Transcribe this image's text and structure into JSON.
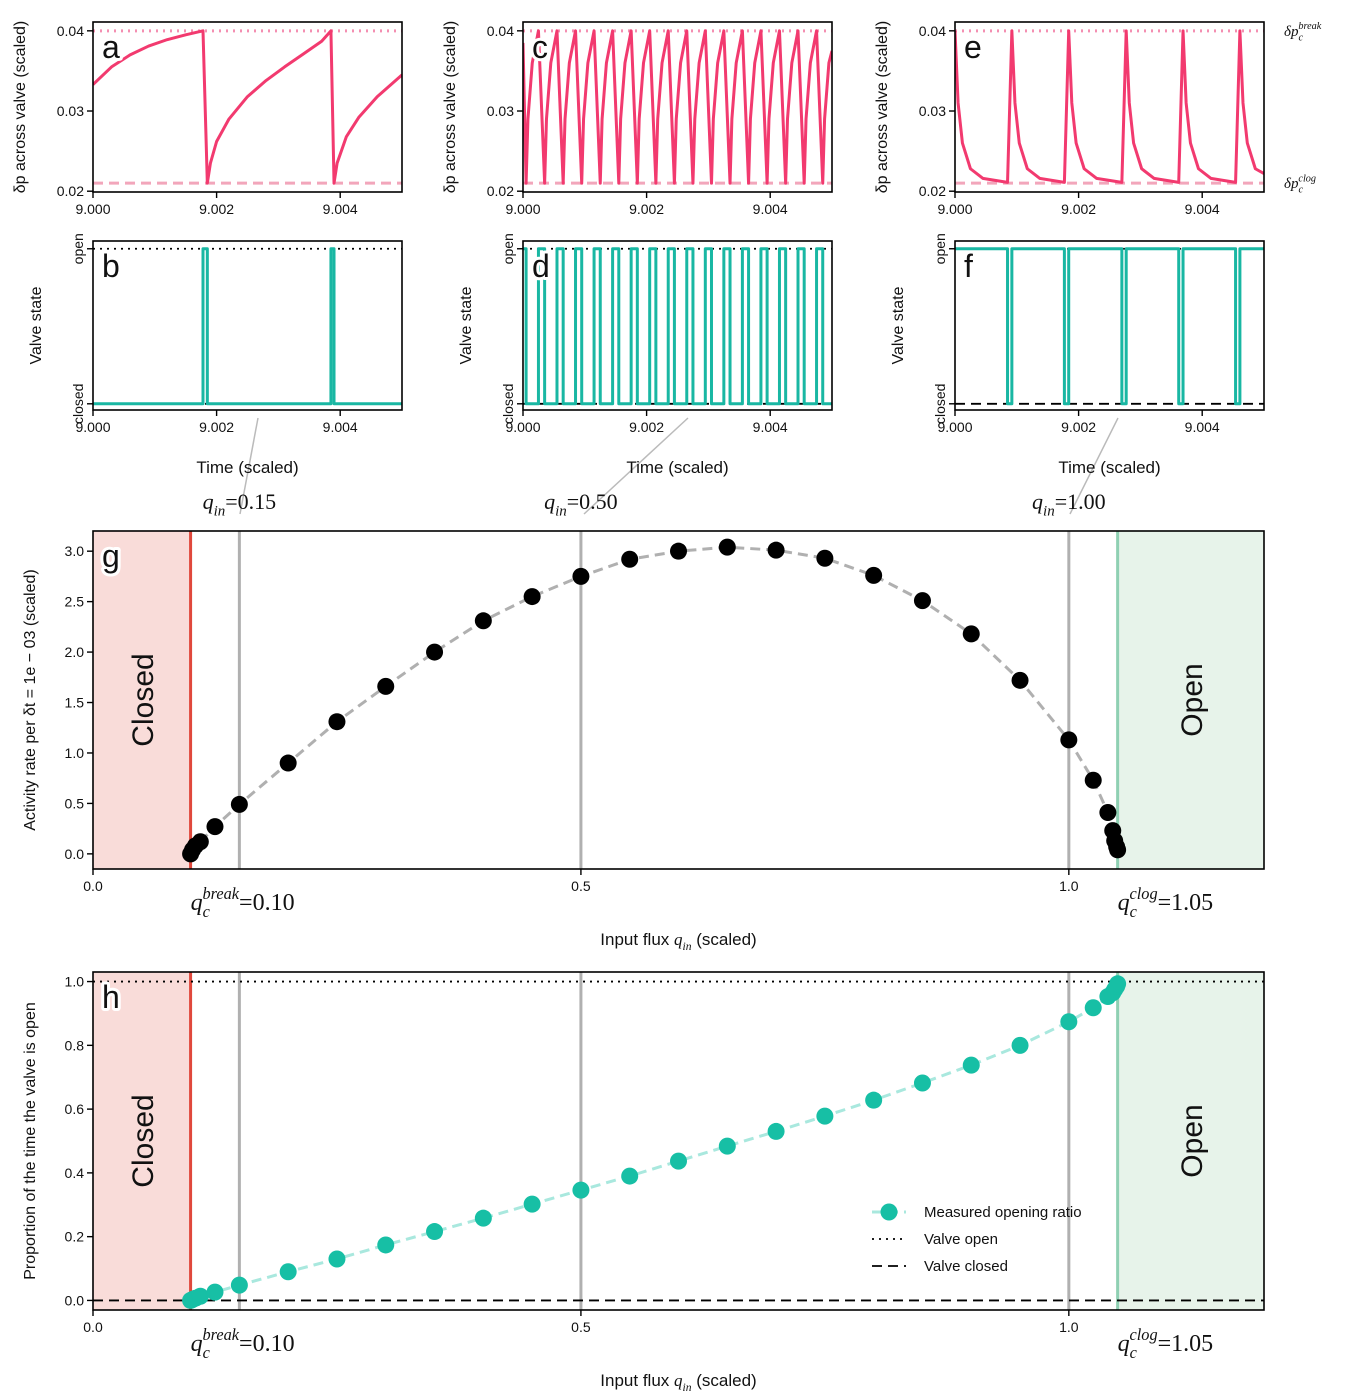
{
  "chart_data": [
    {
      "type": "line",
      "label": "a",
      "ylabel": "δp across valve (scaled)",
      "x": [
        9.0,
        9.0003,
        9.0006,
        9.0009,
        9.0012,
        9.0015,
        9.00178,
        9.00185,
        9.0019,
        9.002,
        9.0022,
        9.0025,
        9.0028,
        9.0031,
        9.0034,
        9.0037,
        9.00385,
        9.0039,
        9.00395,
        9.0041,
        9.0043,
        9.0046,
        9.005
      ],
      "series": [
        {
          "color": "#f23a6f",
          "values": [
            0.0333,
            0.0355,
            0.037,
            0.0381,
            0.0389,
            0.0395,
            0.04,
            0.021,
            0.0235,
            0.0262,
            0.029,
            0.0318,
            0.0338,
            0.0355,
            0.0371,
            0.0387,
            0.04,
            0.021,
            0.0235,
            0.0268,
            0.0292,
            0.0318,
            0.0345
          ]
        }
      ],
      "xlim": [
        9.0,
        9.005
      ],
      "xticks": [
        {
          "value": 9.0,
          "label": "9.000"
        },
        9.002,
        9.004
      ],
      "ylim": [
        0.0199,
        0.0411
      ],
      "yticks": [
        0.02,
        0.03,
        0.04
      ],
      "reference_lines": [
        {
          "value": 0.04,
          "style": "dotted",
          "color": "#f48fb1"
        },
        {
          "value": 0.021,
          "style": "dashed",
          "color": "#f2a6bb"
        }
      ]
    },
    {
      "type": "line",
      "label": "b",
      "ylabel": "Valve state",
      "xlabel": "Time (scaled)",
      "x": [
        9.0,
        9.00178,
        9.00178,
        9.00185,
        9.00185,
        9.00385,
        9.00385,
        9.0039,
        9.0039,
        9.005
      ],
      "series": [
        {
          "color": "#19b7a3",
          "values": [
            0,
            0,
            1,
            1,
            0,
            0,
            1,
            1,
            0,
            0
          ]
        }
      ],
      "xlim": [
        9.0,
        9.005
      ],
      "xticks": [
        {
          "value": 9.0,
          "label": "9.000"
        },
        9.002,
        9.004
      ],
      "ylim": [
        -0.04,
        1.05
      ],
      "yticks": [
        {
          "value": 0,
          "label": "closed"
        },
        {
          "value": 1,
          "label": "open"
        }
      ],
      "reference_lines": [
        {
          "value": 1,
          "style": "dotted",
          "color": "#000000"
        },
        {
          "value": 0,
          "style": "dashed",
          "color": "#000000"
        }
      ]
    },
    {
      "type": "line",
      "label": "c",
      "ylabel": "δp across valve (scaled)",
      "x": [
        9.0,
        9.00005,
        9.00008,
        9.00015,
        9.00025,
        9.00035,
        9.00038,
        9.00045,
        9.00055,
        9.00065,
        9.00068,
        9.00075,
        9.00085,
        9.00095,
        9.00098,
        9.00105,
        9.00115,
        9.00125,
        9.00128,
        9.00135,
        9.00145,
        9.00155,
        9.00158,
        9.00165,
        9.00175,
        9.00185,
        9.00188,
        9.00195,
        9.00205,
        9.00215,
        9.00218,
        9.00225,
        9.00235,
        9.00245,
        9.00248,
        9.00255,
        9.00265,
        9.00275,
        9.00278,
        9.00285,
        9.00295,
        9.00305,
        9.00308,
        9.00315,
        9.00325,
        9.00335,
        9.00338,
        9.00345,
        9.00355,
        9.00365,
        9.00368,
        9.00375,
        9.00385,
        9.00395,
        9.00398,
        9.00405,
        9.00415,
        9.00425,
        9.00428,
        9.00435,
        9.00445,
        9.00455,
        9.00458,
        9.00465,
        9.00475,
        9.00485,
        9.00488,
        9.00495,
        9.005
      ],
      "series": [
        {
          "color": "#f23a6f",
          "values": [
            0.0385,
            0.021,
            0.029,
            0.036,
            0.04,
            0.021,
            0.029,
            0.036,
            0.04,
            0.021,
            0.029,
            0.036,
            0.04,
            0.021,
            0.029,
            0.036,
            0.04,
            0.021,
            0.029,
            0.036,
            0.04,
            0.021,
            0.029,
            0.036,
            0.04,
            0.021,
            0.029,
            0.036,
            0.04,
            0.021,
            0.029,
            0.036,
            0.04,
            0.021,
            0.029,
            0.036,
            0.04,
            0.021,
            0.029,
            0.036,
            0.04,
            0.021,
            0.029,
            0.036,
            0.04,
            0.021,
            0.029,
            0.036,
            0.04,
            0.021,
            0.029,
            0.036,
            0.04,
            0.021,
            0.029,
            0.036,
            0.04,
            0.021,
            0.029,
            0.036,
            0.04,
            0.021,
            0.029,
            0.036,
            0.04,
            0.021,
            0.029,
            0.036,
            0.0375
          ]
        }
      ],
      "xlim": [
        9.0,
        9.005
      ],
      "xticks": [
        {
          "value": 9.0,
          "label": "9.000"
        },
        9.002,
        9.004
      ],
      "ylim": [
        0.0199,
        0.0411
      ],
      "yticks": [
        0.02,
        0.03,
        0.04
      ],
      "reference_lines": [
        {
          "value": 0.04,
          "style": "dotted",
          "color": "#f48fb1"
        },
        {
          "value": 0.021,
          "style": "dashed",
          "color": "#f2a6bb"
        }
      ]
    },
    {
      "type": "line",
      "label": "d",
      "ylabel": "Valve state",
      "xlabel": "Time (scaled)",
      "x": [
        9.0,
        9.00005,
        9.00005,
        9.00025,
        9.00025,
        9.00035,
        9.00035,
        9.00055,
        9.00055,
        9.00065,
        9.00065,
        9.00085,
        9.00085,
        9.00095,
        9.00095,
        9.00115,
        9.00115,
        9.00125,
        9.00125,
        9.00145,
        9.00145,
        9.00155,
        9.00155,
        9.00175,
        9.00175,
        9.00185,
        9.00185,
        9.00205,
        9.00205,
        9.00215,
        9.00215,
        9.00235,
        9.00235,
        9.00245,
        9.00245,
        9.00265,
        9.00265,
        9.00275,
        9.00275,
        9.00295,
        9.00295,
        9.00305,
        9.00305,
        9.00325,
        9.00325,
        9.00335,
        9.00335,
        9.00355,
        9.00355,
        9.00365,
        9.00365,
        9.00385,
        9.00385,
        9.00395,
        9.00395,
        9.00415,
        9.00415,
        9.00425,
        9.00425,
        9.00445,
        9.00445,
        9.00455,
        9.00455,
        9.00475,
        9.00475,
        9.00485,
        9.00485,
        9.005
      ],
      "series": [
        {
          "color": "#19b7a3",
          "values": [
            1,
            1,
            0,
            0,
            1,
            1,
            0,
            0,
            1,
            1,
            0,
            0,
            1,
            1,
            0,
            0,
            1,
            1,
            0,
            0,
            1,
            1,
            0,
            0,
            1,
            1,
            0,
            0,
            1,
            1,
            0,
            0,
            1,
            1,
            0,
            0,
            1,
            1,
            0,
            0,
            1,
            1,
            0,
            0,
            1,
            1,
            0,
            0,
            1,
            1,
            0,
            0,
            1,
            1,
            0,
            0,
            1,
            1,
            0,
            0,
            1,
            1,
            0,
            0,
            1,
            1,
            0,
            0
          ]
        }
      ],
      "xlim": [
        9.0,
        9.005
      ],
      "xticks": [
        {
          "value": 9.0,
          "label": "9.000"
        },
        9.002,
        9.004
      ],
      "ylim": [
        -0.04,
        1.05
      ],
      "yticks": [
        {
          "value": 0,
          "label": "closed"
        },
        {
          "value": 1,
          "label": "open"
        }
      ],
      "reference_lines": [
        {
          "value": 1,
          "style": "dotted",
          "color": "#000000"
        },
        {
          "value": 0,
          "style": "dashed",
          "color": "#000000"
        }
      ]
    },
    {
      "type": "line",
      "label": "e",
      "ylabel": "δp across valve (scaled)",
      "x": [
        9.0,
        9.00005,
        9.00012,
        9.00025,
        9.00045,
        9.00085,
        9.00092,
        9.00097,
        9.00104,
        9.00117,
        9.00137,
        9.00177,
        9.00184,
        9.00189,
        9.00196,
        9.00209,
        9.00229,
        9.0027,
        9.00277,
        9.00282,
        9.00289,
        9.00302,
        9.00322,
        9.00362,
        9.00369,
        9.00374,
        9.00381,
        9.00394,
        9.00414,
        9.00454,
        9.00461,
        9.00466,
        9.00473,
        9.00486,
        9.005
      ],
      "series": [
        {
          "color": "#f23a6f",
          "values": [
            0.04,
            0.031,
            0.026,
            0.0228,
            0.0216,
            0.0211,
            0.04,
            0.031,
            0.026,
            0.0228,
            0.0216,
            0.0211,
            0.04,
            0.031,
            0.026,
            0.0228,
            0.0216,
            0.0211,
            0.04,
            0.031,
            0.026,
            0.0228,
            0.0216,
            0.0211,
            0.04,
            0.031,
            0.026,
            0.0228,
            0.0216,
            0.0211,
            0.04,
            0.031,
            0.026,
            0.0228,
            0.0222
          ]
        }
      ],
      "xlim": [
        9.0,
        9.005
      ],
      "xticks": [
        {
          "value": 9.0,
          "label": "9.000"
        },
        9.002,
        9.004
      ],
      "ylim": [
        0.0199,
        0.0411
      ],
      "yticks": [
        0.02,
        0.03,
        0.04
      ],
      "reference_lines": [
        {
          "value": 0.04,
          "style": "dotted",
          "color": "#f48fb1",
          "label": {
            "var": "δp",
            "sub": "c",
            "sup": "break"
          }
        },
        {
          "value": 0.021,
          "style": "dashed",
          "color": "#f2a6bb",
          "label": {
            "var": "δp",
            "sub": "c",
            "sup": "clog"
          }
        }
      ]
    },
    {
      "type": "line",
      "label": "f",
      "ylabel": "Valve state",
      "xlabel": "Time (scaled)",
      "x": [
        9.0,
        9.00085,
        9.00085,
        9.00092,
        9.00092,
        9.00177,
        9.00177,
        9.00184,
        9.00184,
        9.0027,
        9.0027,
        9.00277,
        9.00277,
        9.00362,
        9.00362,
        9.00369,
        9.00369,
        9.00454,
        9.00454,
        9.00461,
        9.00461,
        9.005
      ],
      "series": [
        {
          "color": "#19b7a3",
          "values": [
            1,
            1,
            0,
            0,
            1,
            1,
            0,
            0,
            1,
            1,
            0,
            0,
            1,
            1,
            0,
            0,
            1,
            1,
            0,
            0,
            1,
            1
          ]
        }
      ],
      "xlim": [
        9.0,
        9.005
      ],
      "xticks": [
        {
          "value": 9.0,
          "label": "9.000"
        },
        9.002,
        9.004
      ],
      "ylim": [
        -0.04,
        1.05
      ],
      "yticks": [
        {
          "value": 0,
          "label": "closed"
        },
        {
          "value": 1,
          "label": "open"
        }
      ],
      "reference_lines": [
        {
          "value": 1,
          "style": "dotted",
          "color": "#000000"
        },
        {
          "value": 0,
          "style": "dashed",
          "color": "#000000"
        }
      ]
    },
    {
      "type": "scatter",
      "label": "g",
      "ylabel": "Activity rate per δt = 1e − 03 (scaled)",
      "xlabel": {
        "text": "Input flux ",
        "var": "q",
        "sub": "in",
        "end": " (scaled)"
      },
      "x": [
        0.1,
        0.102,
        0.105,
        0.11,
        0.125,
        0.15,
        0.2,
        0.25,
        0.3,
        0.35,
        0.4,
        0.45,
        0.5,
        0.55,
        0.6,
        0.65,
        0.7,
        0.75,
        0.8,
        0.85,
        0.9,
        0.95,
        1.0,
        1.025,
        1.04,
        1.045,
        1.047,
        1.049,
        1.05
      ],
      "series": [
        {
          "color": "#000000",
          "line_color": "#b0b0b0",
          "values": [
            0,
            0.04,
            0.08,
            0.12,
            0.27,
            0.49,
            0.9,
            1.31,
            1.66,
            2.0,
            2.31,
            2.55,
            2.75,
            2.92,
            3.0,
            3.04,
            3.01,
            2.93,
            2.76,
            2.51,
            2.18,
            1.72,
            1.13,
            0.73,
            0.41,
            0.23,
            0.13,
            0.07,
            0.04
          ]
        }
      ],
      "xlim": [
        0,
        1.2
      ],
      "xticks": [
        {
          "value": 0,
          "label": "0.0"
        },
        0.5,
        {
          "value": 1,
          "label": "1.0"
        }
      ],
      "ylim": [
        -0.15,
        3.2
      ],
      "yticks": [
        {
          "value": 0,
          "label": "0.0"
        },
        0.5,
        {
          "value": 1,
          "label": "1.0"
        },
        1.5,
        {
          "value": 2,
          "label": "2.0"
        },
        2.5,
        {
          "value": 3,
          "label": "3.0"
        }
      ],
      "vlines": [
        {
          "value": 0.15,
          "label": {
            "var": "q",
            "sub": "in",
            "suffix": "=0.15"
          }
        },
        {
          "value": 0.5,
          "label": {
            "var": "q",
            "sub": "in",
            "suffix": "=0.50"
          }
        },
        {
          "value": 1.0,
          "label": {
            "var": "q",
            "sub": "in",
            "suffix": "=1.00"
          }
        }
      ],
      "thresholds": [
        {
          "value": 0.1,
          "color": "#e0483c",
          "label": {
            "var": "q",
            "sub": "c",
            "sup": "break",
            "suffix": "=0.10"
          },
          "region": {
            "label": "Closed",
            "color": "#f9dcd9"
          }
        },
        {
          "value": 1.05,
          "color": "#8fd0b3",
          "label": {
            "var": "q",
            "sub": "c",
            "sup": "clog",
            "suffix": "=1.05"
          },
          "region": {
            "label": "Open",
            "color": "#e7f3ea"
          }
        }
      ]
    },
    {
      "type": "scatter",
      "label": "h",
      "ylabel": "Proportion of the time the valve is open",
      "xlabel": {
        "text": "Input flux ",
        "var": "q",
        "sub": "in",
        "end": " (scaled)"
      },
      "x": [
        0.1,
        0.102,
        0.105,
        0.11,
        0.125,
        0.15,
        0.2,
        0.25,
        0.3,
        0.35,
        0.4,
        0.45,
        0.5,
        0.55,
        0.6,
        0.65,
        0.7,
        0.75,
        0.8,
        0.85,
        0.9,
        0.95,
        1.0,
        1.025,
        1.04,
        1.045,
        1.047,
        1.049,
        1.05
      ],
      "series": [
        {
          "name": "Measured opening ratio",
          "color": "#17bfa5",
          "line_color": "#a9e8de",
          "values": [
            0,
            0.003,
            0.007,
            0.013,
            0.026,
            0.048,
            0.09,
            0.13,
            0.174,
            0.216,
            0.258,
            0.302,
            0.346,
            0.39,
            0.437,
            0.484,
            0.53,
            0.578,
            0.628,
            0.682,
            0.738,
            0.8,
            0.874,
            0.918,
            0.953,
            0.965,
            0.975,
            0.985,
            0.993
          ]
        }
      ],
      "xlim": [
        0,
        1.2
      ],
      "xticks": [
        {
          "value": 0,
          "label": "0.0"
        },
        0.5,
        {
          "value": 1,
          "label": "1.0"
        }
      ],
      "ylim": [
        -0.03,
        1.03
      ],
      "yticks": [
        {
          "value": 0,
          "label": "0.0"
        },
        0.2,
        0.4,
        0.6,
        0.8,
        {
          "value": 1,
          "label": "1.0"
        }
      ],
      "vlines": [
        0.15,
        0.5,
        1.0
      ],
      "reference_lines": [
        {
          "value": 1,
          "style": "dotted",
          "color": "#000000",
          "label": "Valve open"
        },
        {
          "value": 0,
          "style": "dashed",
          "color": "#000000",
          "label": "Valve closed"
        }
      ],
      "thresholds": [
        {
          "value": 0.1,
          "color": "#e0483c",
          "label": {
            "var": "q",
            "sub": "c",
            "sup": "break",
            "suffix": "=0.10"
          },
          "region": {
            "label": "Closed",
            "color": "#f9dcd9"
          }
        },
        {
          "value": 1.05,
          "color": "#8fd0b3",
          "label": {
            "var": "q",
            "sub": "c",
            "sup": "clog",
            "suffix": "=1.05"
          },
          "region": {
            "label": "Open",
            "color": "#e7f3ea"
          }
        }
      ],
      "legend": "lower right"
    }
  ]
}
